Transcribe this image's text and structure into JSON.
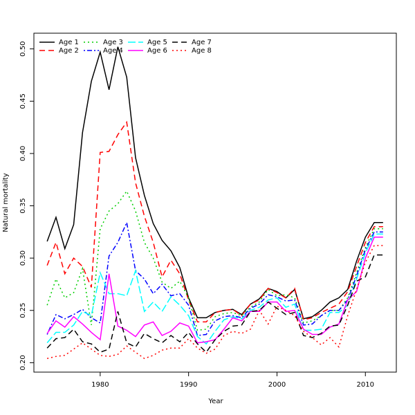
{
  "chart_data": {
    "type": "line",
    "xlabel": "Year",
    "ylabel": "Natural mortality",
    "x": [
      1974,
      1975,
      1976,
      1977,
      1978,
      1979,
      1980,
      1981,
      1982,
      1983,
      1984,
      1985,
      1986,
      1987,
      1988,
      1989,
      1990,
      1991,
      1992,
      1993,
      1994,
      1995,
      1996,
      1997,
      1998,
      1999,
      2000,
      2001,
      2002,
      2003,
      2004,
      2005,
      2006,
      2007,
      2008,
      2009,
      2010,
      2011,
      2012
    ],
    "xlim": [
      1972.5,
      2013.5
    ],
    "xticks": [
      1980,
      1990,
      2000,
      2010
    ],
    "ylim": [
      0.191,
      0.515
    ],
    "yticks": [
      {
        "value": 0.2,
        "label": "0.20"
      },
      0.25,
      {
        "value": 0.3,
        "label": "0.30"
      },
      0.35,
      {
        "value": 0.4,
        "label": "0.40"
      },
      0.45,
      {
        "value": 0.5,
        "label": "0.50"
      }
    ],
    "grid": false,
    "legend": "top-left",
    "series": [
      {
        "name": "Age 1",
        "color": "#000000",
        "linestyle": "solid",
        "values": [
          0.316,
          0.339,
          0.309,
          0.332,
          0.42,
          0.469,
          0.497,
          0.461,
          0.502,
          0.473,
          0.396,
          0.36,
          0.333,
          0.317,
          0.307,
          0.291,
          0.262,
          0.243,
          0.243,
          0.248,
          0.25,
          0.251,
          0.246,
          0.256,
          0.261,
          0.271,
          0.268,
          0.262,
          0.27,
          0.242,
          0.244,
          0.25,
          0.258,
          0.262,
          0.27,
          0.297,
          0.32,
          0.334,
          0.334
        ]
      },
      {
        "name": "Age 2",
        "color": "#ff0000",
        "linestyle": "dashed",
        "values": [
          0.293,
          0.315,
          0.285,
          0.3,
          0.292,
          0.272,
          0.401,
          0.402,
          0.418,
          0.43,
          0.372,
          0.34,
          0.315,
          0.282,
          0.298,
          0.285,
          0.26,
          0.239,
          0.239,
          0.248,
          0.25,
          0.251,
          0.245,
          0.256,
          0.26,
          0.271,
          0.267,
          0.262,
          0.271,
          0.241,
          0.243,
          0.248,
          0.252,
          0.256,
          0.268,
          0.292,
          0.315,
          0.33,
          0.33
        ]
      },
      {
        "name": "Age 3",
        "color": "#00cd00",
        "linestyle": "dotted",
        "values": [
          0.255,
          0.28,
          0.262,
          0.267,
          0.29,
          0.236,
          0.328,
          0.345,
          0.352,
          0.364,
          0.345,
          0.315,
          0.3,
          0.277,
          0.271,
          0.278,
          0.262,
          0.231,
          0.232,
          0.244,
          0.247,
          0.248,
          0.245,
          0.253,
          0.258,
          0.27,
          0.264,
          0.265,
          0.262,
          0.238,
          0.24,
          0.245,
          0.25,
          0.25,
          0.262,
          0.286,
          0.31,
          0.328,
          0.328
        ]
      },
      {
        "name": "Age 4",
        "color": "#0000ff",
        "linestyle": "dotdash",
        "values": [
          0.227,
          0.246,
          0.242,
          0.246,
          0.251,
          0.243,
          0.238,
          0.302,
          0.315,
          0.334,
          0.288,
          0.28,
          0.266,
          0.275,
          0.264,
          0.266,
          0.255,
          0.226,
          0.227,
          0.24,
          0.244,
          0.245,
          0.243,
          0.252,
          0.256,
          0.265,
          0.263,
          0.259,
          0.26,
          0.236,
          0.237,
          0.245,
          0.25,
          0.25,
          0.26,
          0.283,
          0.308,
          0.325,
          0.325
        ]
      },
      {
        "name": "Age 5",
        "color": "#00ffff",
        "linestyle": "longdash",
        "values": [
          0.219,
          0.229,
          0.229,
          0.236,
          0.249,
          0.245,
          0.286,
          0.266,
          0.266,
          0.264,
          0.288,
          0.249,
          0.258,
          0.249,
          0.263,
          0.255,
          0.245,
          0.225,
          0.218,
          0.23,
          0.241,
          0.244,
          0.242,
          0.25,
          0.253,
          0.26,
          0.262,
          0.253,
          0.256,
          0.231,
          0.231,
          0.232,
          0.248,
          0.248,
          0.255,
          0.28,
          0.305,
          0.323,
          0.323
        ]
      },
      {
        "name": "Age 6",
        "color": "#ff00ff",
        "linestyle": "solid",
        "values": [
          0.228,
          0.24,
          0.234,
          0.244,
          0.237,
          0.229,
          0.222,
          0.285,
          0.235,
          0.231,
          0.225,
          0.236,
          0.239,
          0.226,
          0.23,
          0.238,
          0.235,
          0.219,
          0.22,
          0.222,
          0.232,
          0.243,
          0.24,
          0.249,
          0.249,
          0.258,
          0.258,
          0.249,
          0.25,
          0.232,
          0.227,
          0.227,
          0.234,
          0.237,
          0.26,
          0.268,
          0.3,
          0.32,
          0.32
        ]
      },
      {
        "name": "Age 7",
        "color": "#000000",
        "linestyle": "dashed",
        "values": [
          0.214,
          0.223,
          0.224,
          0.232,
          0.22,
          0.218,
          0.21,
          0.213,
          0.249,
          0.219,
          0.215,
          0.228,
          0.223,
          0.219,
          0.226,
          0.22,
          0.229,
          0.218,
          0.21,
          0.222,
          0.23,
          0.235,
          0.236,
          0.249,
          0.25,
          0.258,
          0.252,
          0.246,
          0.248,
          0.226,
          0.224,
          0.228,
          0.235,
          0.236,
          0.255,
          0.278,
          0.282,
          0.303,
          0.303
        ]
      },
      {
        "name": "Age 8",
        "color": "#ff0000",
        "linestyle": "dotted",
        "values": [
          0.204,
          0.206,
          0.207,
          0.213,
          0.219,
          0.213,
          0.207,
          0.206,
          0.208,
          0.216,
          0.21,
          0.204,
          0.207,
          0.212,
          0.214,
          0.214,
          0.223,
          0.214,
          0.209,
          0.213,
          0.226,
          0.23,
          0.228,
          0.232,
          0.25,
          0.237,
          0.254,
          0.25,
          0.245,
          0.23,
          0.224,
          0.217,
          0.224,
          0.215,
          0.245,
          0.27,
          0.296,
          0.312,
          0.312
        ]
      }
    ]
  }
}
